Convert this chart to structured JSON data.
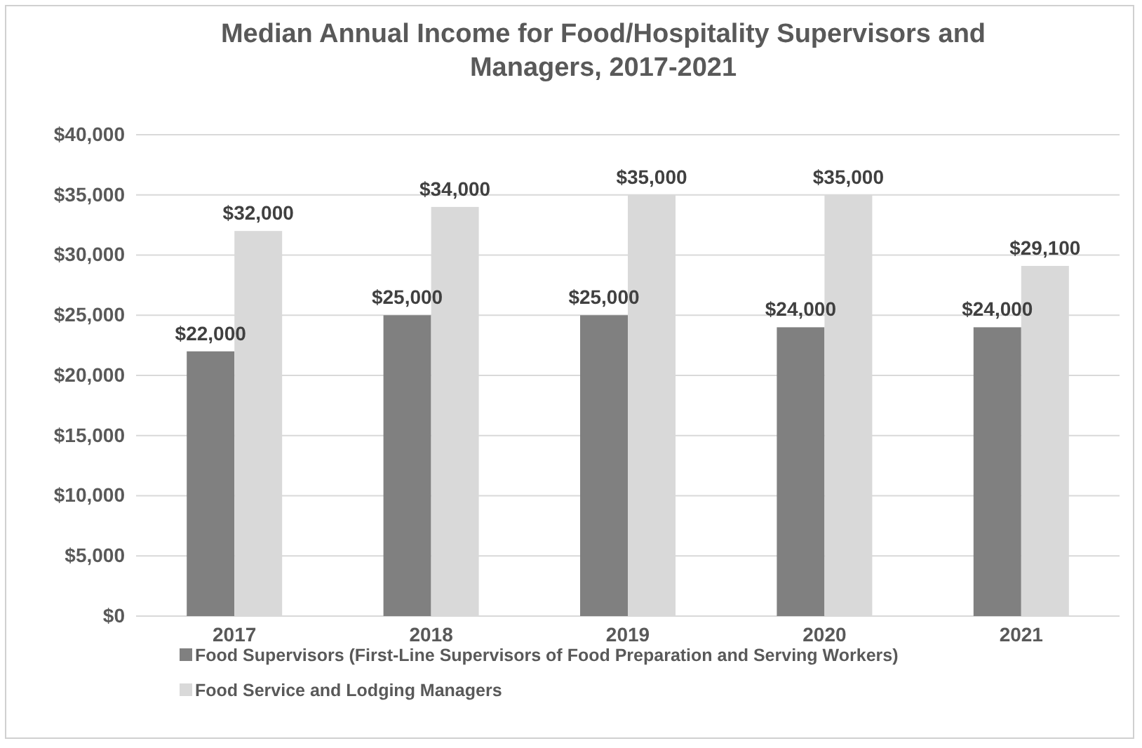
{
  "chart_data": {
    "type": "bar",
    "title": "Median Annual Income for Food/Hospitality Supervisors and Managers, 2017-2021",
    "categories": [
      "2017",
      "2018",
      "2019",
      "2020",
      "2021"
    ],
    "series": [
      {
        "name": "Food Supervisors (First-Line Supervisors of Food Preparation and Serving Workers)",
        "color": "#808080",
        "values": [
          22000,
          25000,
          25000,
          24000,
          24000
        ],
        "value_labels": [
          "$22,000",
          "$25,000",
          "$25,000",
          "$24,000",
          "$24,000"
        ]
      },
      {
        "name": "Food Service and Lodging Managers",
        "color": "#d9d9d9",
        "values": [
          32000,
          34000,
          35000,
          35000,
          29100
        ],
        "value_labels": [
          "$32,000",
          "$34,000",
          "$35,000",
          "$35,000",
          "$29,100"
        ]
      }
    ],
    "ylim": [
      0,
      40000
    ],
    "yticks": [
      {
        "value": 0,
        "label": "$0"
      },
      {
        "value": 5000,
        "label": "$5,000"
      },
      {
        "value": 10000,
        "label": "$10,000"
      },
      {
        "value": 15000,
        "label": "$15,000"
      },
      {
        "value": 20000,
        "label": "$20,000"
      },
      {
        "value": 25000,
        "label": "$25,000"
      },
      {
        "value": 30000,
        "label": "$30,000"
      },
      {
        "value": 35000,
        "label": "$35,000"
      },
      {
        "value": 40000,
        "label": "$40,000"
      }
    ],
    "grid": "y",
    "legend": "bottom"
  }
}
